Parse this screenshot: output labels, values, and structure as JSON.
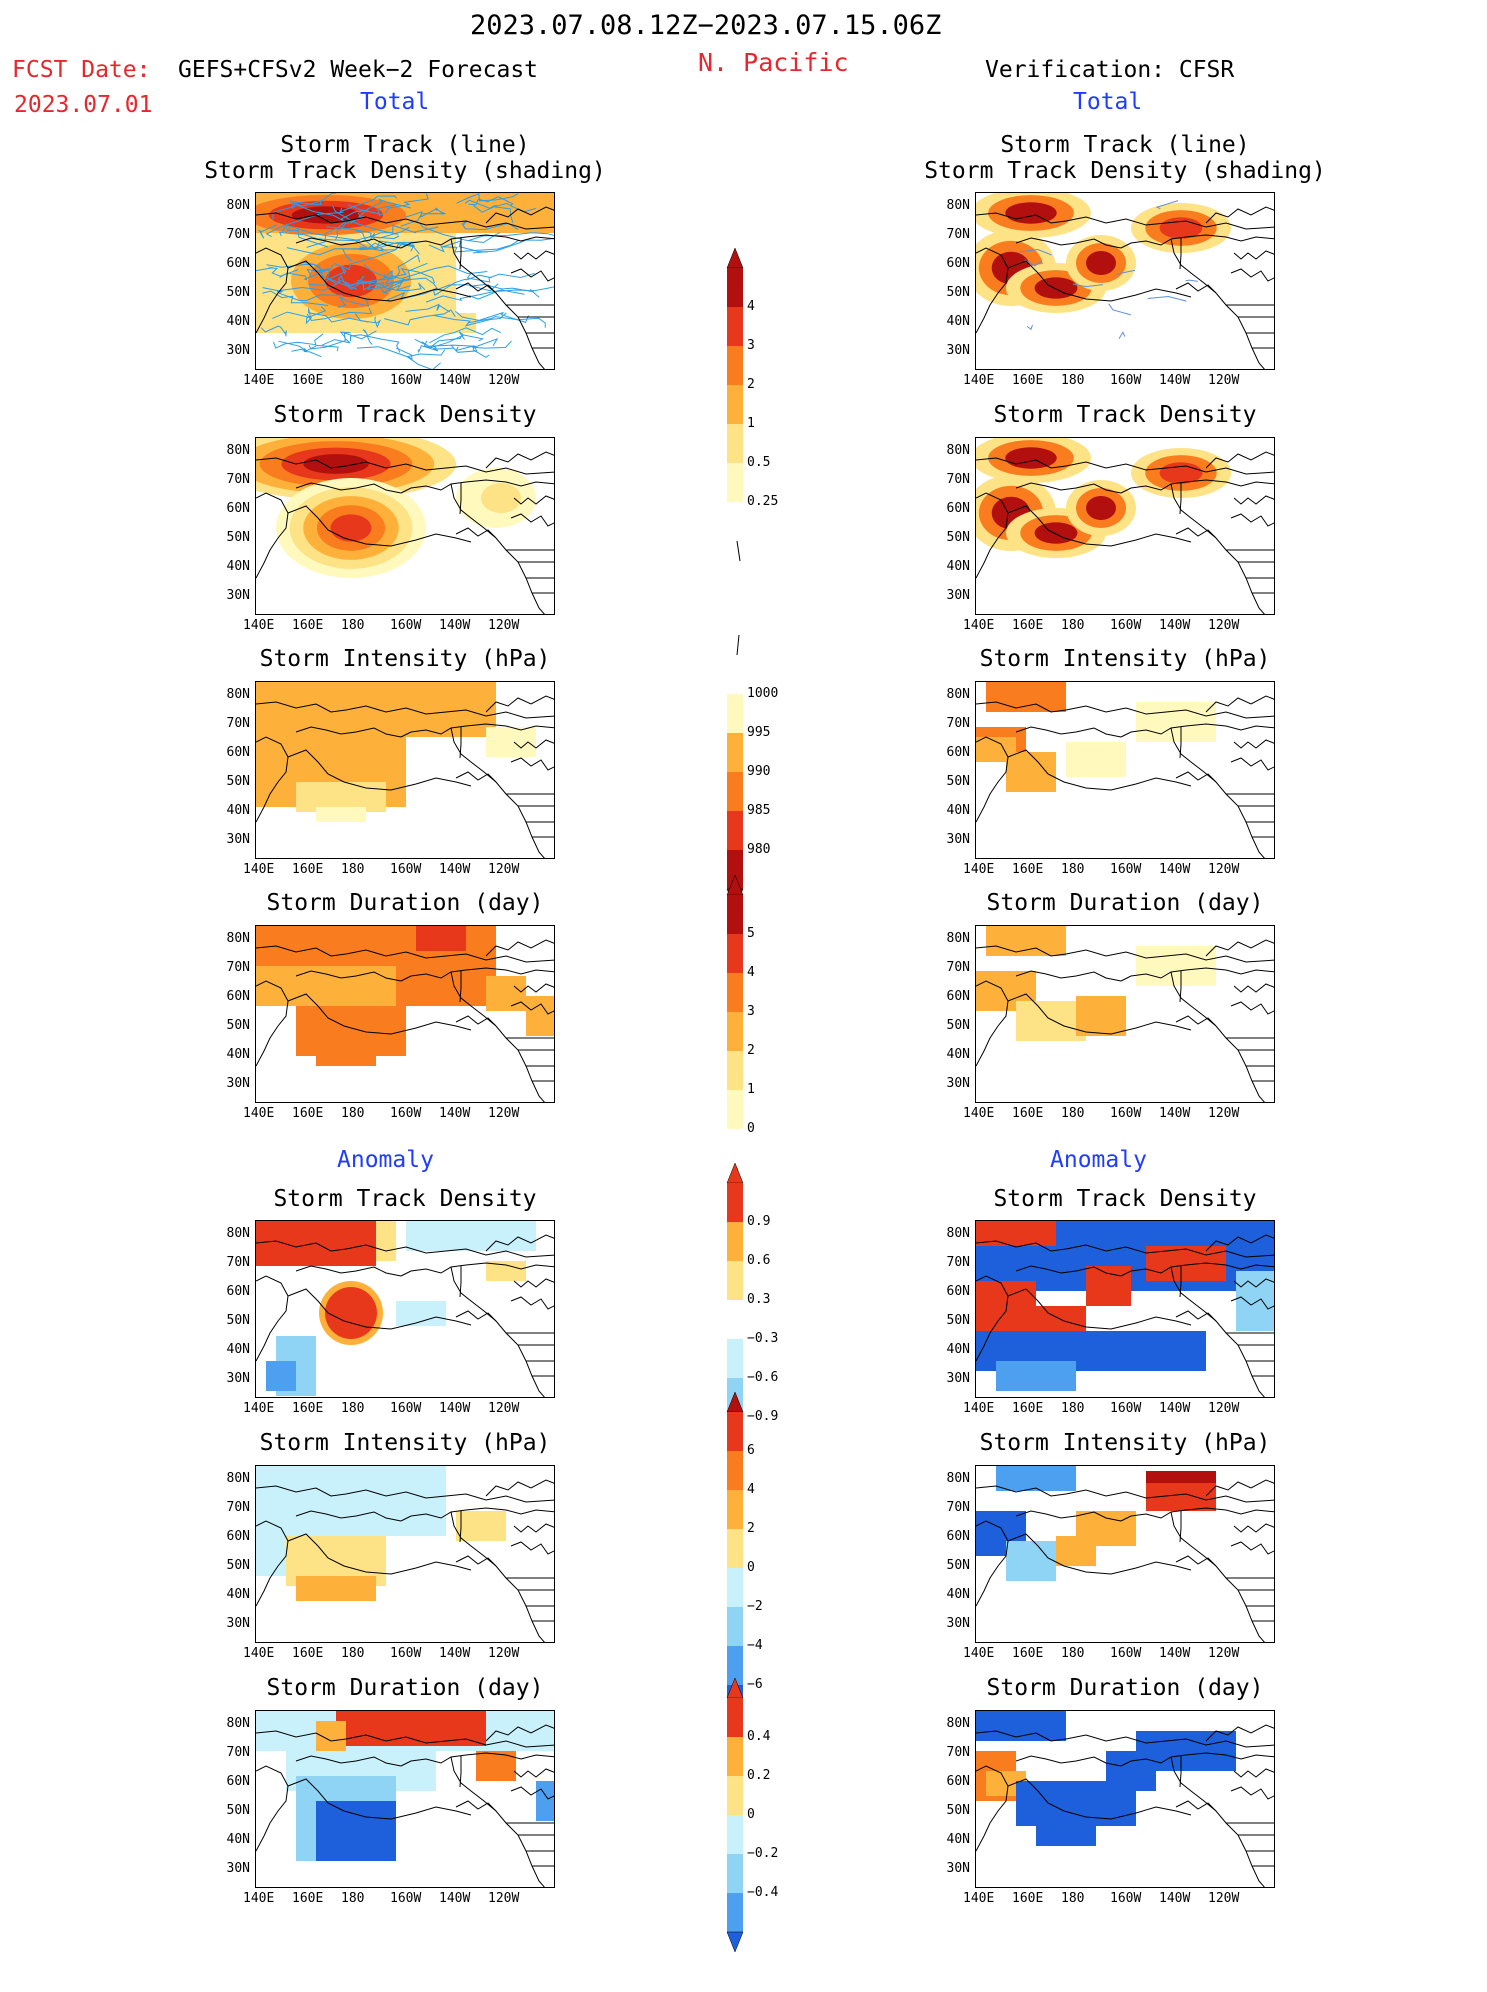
{
  "header": {
    "period": "2023.07.08.12Z−2023.07.15.06Z",
    "region": "N. Pacific",
    "fcst_date_label": "FCST Date:",
    "fcst_model": "GEFS+CFSv2 Week−2 Forecast",
    "fcst_date_value": "2023.07.01",
    "verification": "Verification: CFSR"
  },
  "sections": {
    "total_label": "Total",
    "anomaly_label": "Anomaly"
  },
  "panel_titles": {
    "track_line": "Storm Track (line)",
    "track_shading": "Storm Track Density (shading)",
    "density": "Storm Track Density",
    "intensity": "Storm Intensity (hPa)",
    "duration": "Storm Duration (day)"
  },
  "axes": {
    "lat_labels": [
      "80N",
      "70N",
      "60N",
      "50N",
      "40N",
      "30N"
    ],
    "lon_labels": [
      "140E",
      "160E",
      "180",
      "160W",
      "140W",
      "120W"
    ]
  },
  "colorbars": {
    "density_total": [
      "4",
      "3",
      "2",
      "1",
      "0.5",
      "0.25"
    ],
    "intensity_total": [
      "1000",
      "995",
      "990",
      "985",
      "980"
    ],
    "duration_total": [
      "5",
      "4",
      "3",
      "2",
      "1",
      "0"
    ],
    "density_anom": [
      "0.9",
      "0.6",
      "0.3",
      "−0.3",
      "−0.6",
      "−0.9"
    ],
    "intensity_anom": [
      "6",
      "4",
      "2",
      "0",
      "−2",
      "−4",
      "−6"
    ],
    "duration_anom": [
      "0.4",
      "0.2",
      "0",
      "−0.2",
      "−0.4"
    ]
  },
  "colors": {
    "warm": [
      "#fff9bd",
      "#fde286",
      "#fdb03a",
      "#f97d1e",
      "#e8381c",
      "#b20f0f"
    ],
    "cool": [
      "#c8f1fb",
      "#8fd4f5",
      "#4d9ff0",
      "#1e5fdc"
    ],
    "track_line": "#2b9fe8"
  }
}
